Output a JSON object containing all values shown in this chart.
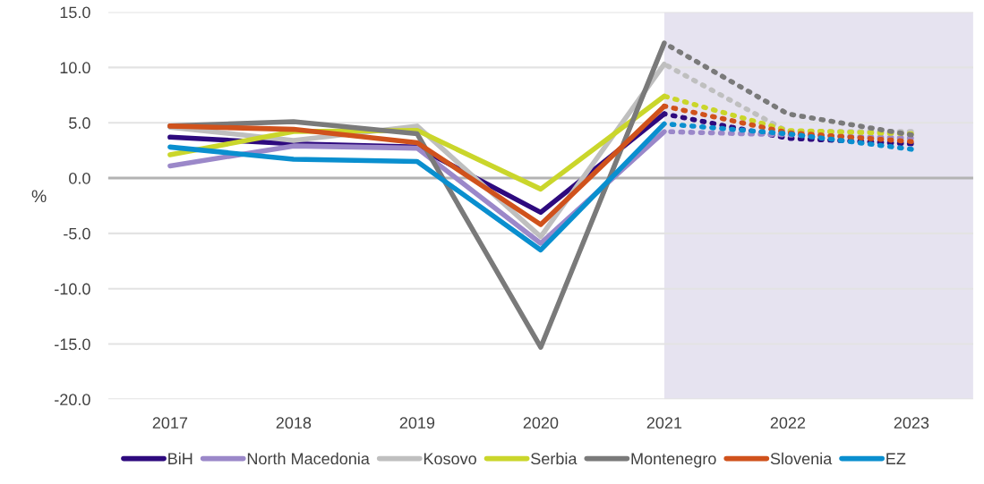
{
  "chart_data": {
    "type": "line",
    "ylabel": "%",
    "x": [
      2017,
      2018,
      2019,
      2020,
      2021,
      2022,
      2023
    ],
    "xlim": [
      2016.5,
      2023.5
    ],
    "xticks": [
      2017,
      2018,
      2019,
      2020,
      2021,
      2022,
      2023
    ],
    "ylim": [
      -20,
      15
    ],
    "yticks": [
      {
        "value": -20,
        "label": "-20.0"
      },
      {
        "value": -15,
        "label": "-15.0"
      },
      {
        "value": -10,
        "label": "-10.0"
      },
      {
        "value": -5,
        "label": "-5.0"
      },
      {
        "value": 0,
        "label": "0.0"
      },
      {
        "value": 5,
        "label": "5.0"
      },
      {
        "value": 10,
        "label": "10.0"
      },
      {
        "value": 15,
        "label": "15.0"
      }
    ],
    "grid": "y",
    "legend": "bottom",
    "marker": "none",
    "bands": [
      {
        "axis": "x",
        "from": 2021,
        "to": 2023.5,
        "color": "#e6e3f0"
      }
    ],
    "ref_lines": [
      {
        "axis": "y",
        "value": 0,
        "color": "#b3b3b3"
      }
    ],
    "series": [
      {
        "name": "BiH",
        "color": "#2e0a7e",
        "line_style": "solid",
        "values": [
          3.7,
          3.1,
          2.8,
          -3.1,
          5.8,
          null,
          null
        ]
      },
      {
        "name": "North Macedonia",
        "color": "#9b88c9",
        "line_style": "solid",
        "values": [
          1.1,
          2.9,
          2.7,
          -5.9,
          4.2,
          null,
          null
        ]
      },
      {
        "name": "Kosovo",
        "color": "#bfbfbf",
        "line_style": "solid",
        "values": [
          4.6,
          3.4,
          4.7,
          -5.3,
          10.3,
          null,
          null
        ]
      },
      {
        "name": "Serbia",
        "color": "#cad62b",
        "line_style": "solid",
        "values": [
          2.1,
          4.2,
          4.3,
          -1.0,
          7.4,
          null,
          null
        ]
      },
      {
        "name": "Montenegro",
        "color": "#7a7a7a",
        "line_style": "solid",
        "values": [
          4.7,
          5.1,
          4.0,
          -15.3,
          12.2,
          null,
          null
        ]
      },
      {
        "name": "Slovenia",
        "color": "#d0521c",
        "line_style": "solid",
        "values": [
          4.7,
          4.4,
          3.2,
          -4.2,
          6.5,
          null,
          null
        ]
      },
      {
        "name": "EZ",
        "color": "#0a8fcf",
        "line_style": "solid",
        "values": [
          2.8,
          1.7,
          1.5,
          -6.5,
          4.9,
          null,
          null
        ]
      },
      {
        "color": "#2e0a7e",
        "line_style": "dotted",
        "values": [
          null,
          null,
          null,
          null,
          5.8,
          3.6,
          3.1
        ]
      },
      {
        "color": "#9b88c9",
        "line_style": "dotted",
        "values": [
          null,
          null,
          null,
          null,
          4.2,
          3.9,
          3.6
        ]
      },
      {
        "color": "#bfbfbf",
        "line_style": "dotted",
        "values": [
          null,
          null,
          null,
          null,
          10.3,
          4.2,
          4.2
        ]
      },
      {
        "color": "#cad62b",
        "line_style": "dotted",
        "values": [
          null,
          null,
          null,
          null,
          7.4,
          4.3,
          4.0
        ]
      },
      {
        "color": "#7a7a7a",
        "line_style": "dotted",
        "values": [
          null,
          null,
          null,
          null,
          12.2,
          5.8,
          3.9
        ]
      },
      {
        "color": "#d0521c",
        "line_style": "dotted",
        "values": [
          null,
          null,
          null,
          null,
          6.5,
          4.1,
          3.3
        ]
      },
      {
        "color": "#0a8fcf",
        "line_style": "dotted",
        "values": [
          null,
          null,
          null,
          null,
          4.9,
          4.0,
          2.6
        ]
      }
    ]
  }
}
